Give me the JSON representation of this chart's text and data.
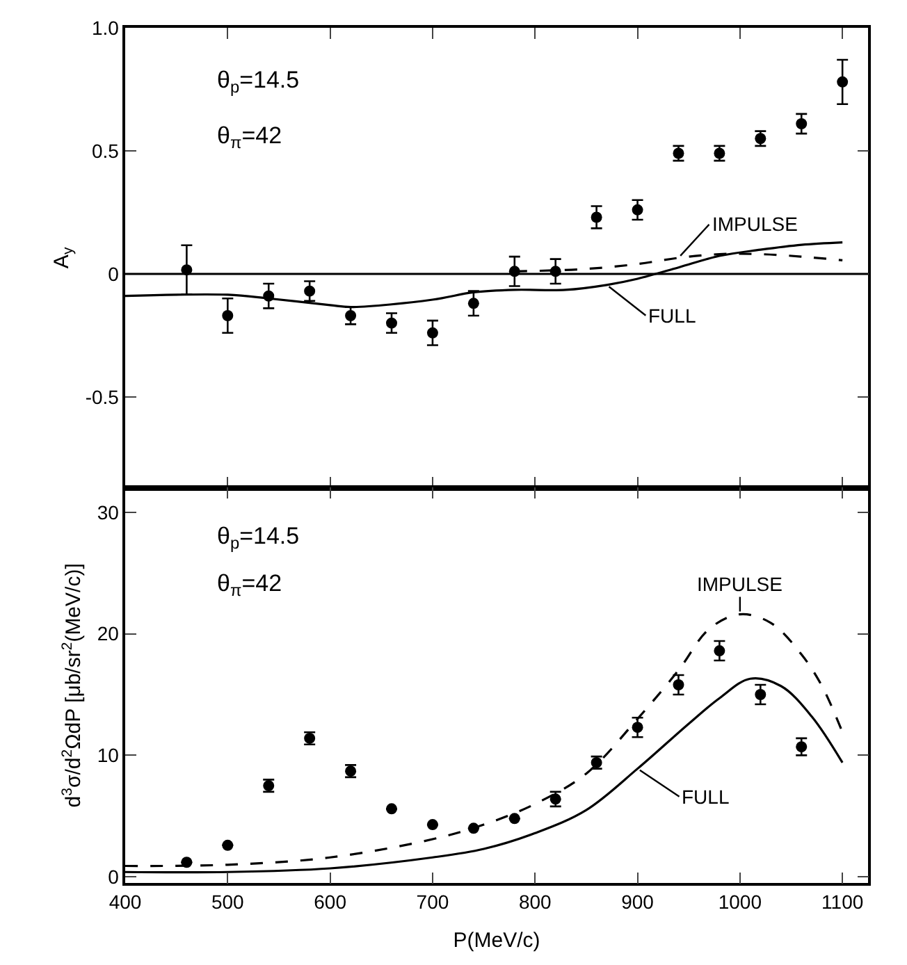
{
  "chart_data": [
    {
      "type": "scatter",
      "ylabel": "A$_{y}$",
      "annotations": [
        "θ$_{p}$=14.5",
        "θ$_{π}$=42"
      ],
      "xlim": [
        400,
        1125
      ],
      "xticks": [
        400,
        500,
        600,
        700,
        800,
        900,
        1000,
        1100
      ],
      "ylim": [
        -0.87,
        1.0
      ],
      "yticks": [
        -0.5,
        0,
        0.5,
        {
          "value": 1.0,
          "label": "1.0"
        }
      ],
      "tick_labels": "y",
      "grid": false,
      "legend": false,
      "ref_lines": [
        {
          "axis": "y",
          "value": 0,
          "color": "#000000",
          "line_style": "solid"
        }
      ],
      "series": [
        {
          "marker": "circle",
          "color": "#000000",
          "x": [
            460,
            500,
            540,
            580,
            620,
            660,
            700,
            740,
            780,
            820,
            860,
            900,
            940,
            980,
            1020,
            1060,
            1100
          ],
          "values": [
            0.016,
            -0.17,
            -0.09,
            -0.07,
            -0.17,
            -0.2,
            -0.24,
            -0.12,
            0.01,
            0.01,
            0.23,
            0.26,
            0.49,
            0.49,
            0.55,
            0.61,
            0.78
          ],
          "errors": [
            0.1,
            0.07,
            0.05,
            0.04,
            0.035,
            0.04,
            0.05,
            0.05,
            0.06,
            0.05,
            0.045,
            0.04,
            0.03,
            0.03,
            0.03,
            0.04,
            0.09
          ]
        },
        {
          "type": "line",
          "name": "IMPULSE",
          "color": "#000000",
          "line_style": "dashed",
          "x": [
            780,
            850,
            900,
            940,
            980,
            1020,
            1060,
            1100
          ],
          "values": [
            0.01,
            0.02,
            0.04,
            0.065,
            0.08,
            0.08,
            0.07,
            0.055
          ]
        },
        {
          "type": "line",
          "name": "FULL",
          "color": "#000000",
          "line_style": "solid",
          "x": [
            400,
            500,
            540,
            600,
            620,
            700,
            740,
            780,
            830,
            870,
            900,
            940,
            980,
            1020,
            1060,
            1100
          ],
          "values": [
            -0.09,
            -0.085,
            -0.1,
            -0.127,
            -0.135,
            -0.105,
            -0.075,
            -0.065,
            -0.065,
            -0.045,
            -0.02,
            0.026,
            0.073,
            0.098,
            0.118,
            0.128
          ]
        }
      ]
    },
    {
      "type": "scatter",
      "xlabel": "P(MeV/c)",
      "ylabel": "d$^{3}$σ/d$^{2}$ΩdP [μb/sr$^{2}$(MeV/c)]",
      "annotations": [
        "θ$_{p}$=14.5",
        "θ$_{π}$=42"
      ],
      "xlim": [
        400,
        1125
      ],
      "xticks": [
        400,
        500,
        600,
        700,
        800,
        900,
        1000,
        1100
      ],
      "ylim": [
        -0.5,
        32
      ],
      "yticks": [
        0,
        10,
        20,
        30
      ],
      "grid": false,
      "legend": false,
      "series": [
        {
          "marker": "circle",
          "color": "#000000",
          "x": [
            460,
            500,
            540,
            580,
            620,
            660,
            700,
            740,
            780,
            820,
            860,
            900,
            940,
            980,
            1020,
            1060
          ],
          "values": [
            1.2,
            2.6,
            7.5,
            11.4,
            8.7,
            5.6,
            4.3,
            4.0,
            4.8,
            6.4,
            9.4,
            12.3,
            15.8,
            18.6,
            15.0,
            10.7
          ],
          "errors": [
            null,
            null,
            0.5,
            0.5,
            0.5,
            null,
            null,
            null,
            null,
            0.6,
            0.5,
            0.8,
            0.8,
            0.8,
            0.8,
            0.7
          ]
        },
        {
          "type": "line",
          "name": "IMPULSE",
          "color": "#000000",
          "line_style": "dashed",
          "x": [
            400,
            500,
            600,
            700,
            750,
            800,
            850,
            900,
            940,
            970,
            1000,
            1030,
            1060,
            1080,
            1100
          ],
          "values": [
            0.9,
            1.0,
            1.6,
            3.1,
            4.3,
            6.0,
            8.5,
            13.0,
            17.0,
            20.4,
            21.6,
            20.9,
            18.3,
            15.7,
            11.9
          ]
        },
        {
          "type": "line",
          "name": "FULL",
          "color": "#000000",
          "line_style": "solid",
          "x": [
            400,
            500,
            600,
            700,
            750,
            800,
            850,
            900,
            950,
            980,
            1010,
            1040,
            1070,
            1100
          ],
          "values": [
            0.4,
            0.4,
            0.7,
            1.6,
            2.3,
            3.6,
            5.5,
            8.9,
            12.6,
            14.7,
            16.3,
            15.7,
            13.2,
            9.4
          ]
        }
      ]
    }
  ]
}
